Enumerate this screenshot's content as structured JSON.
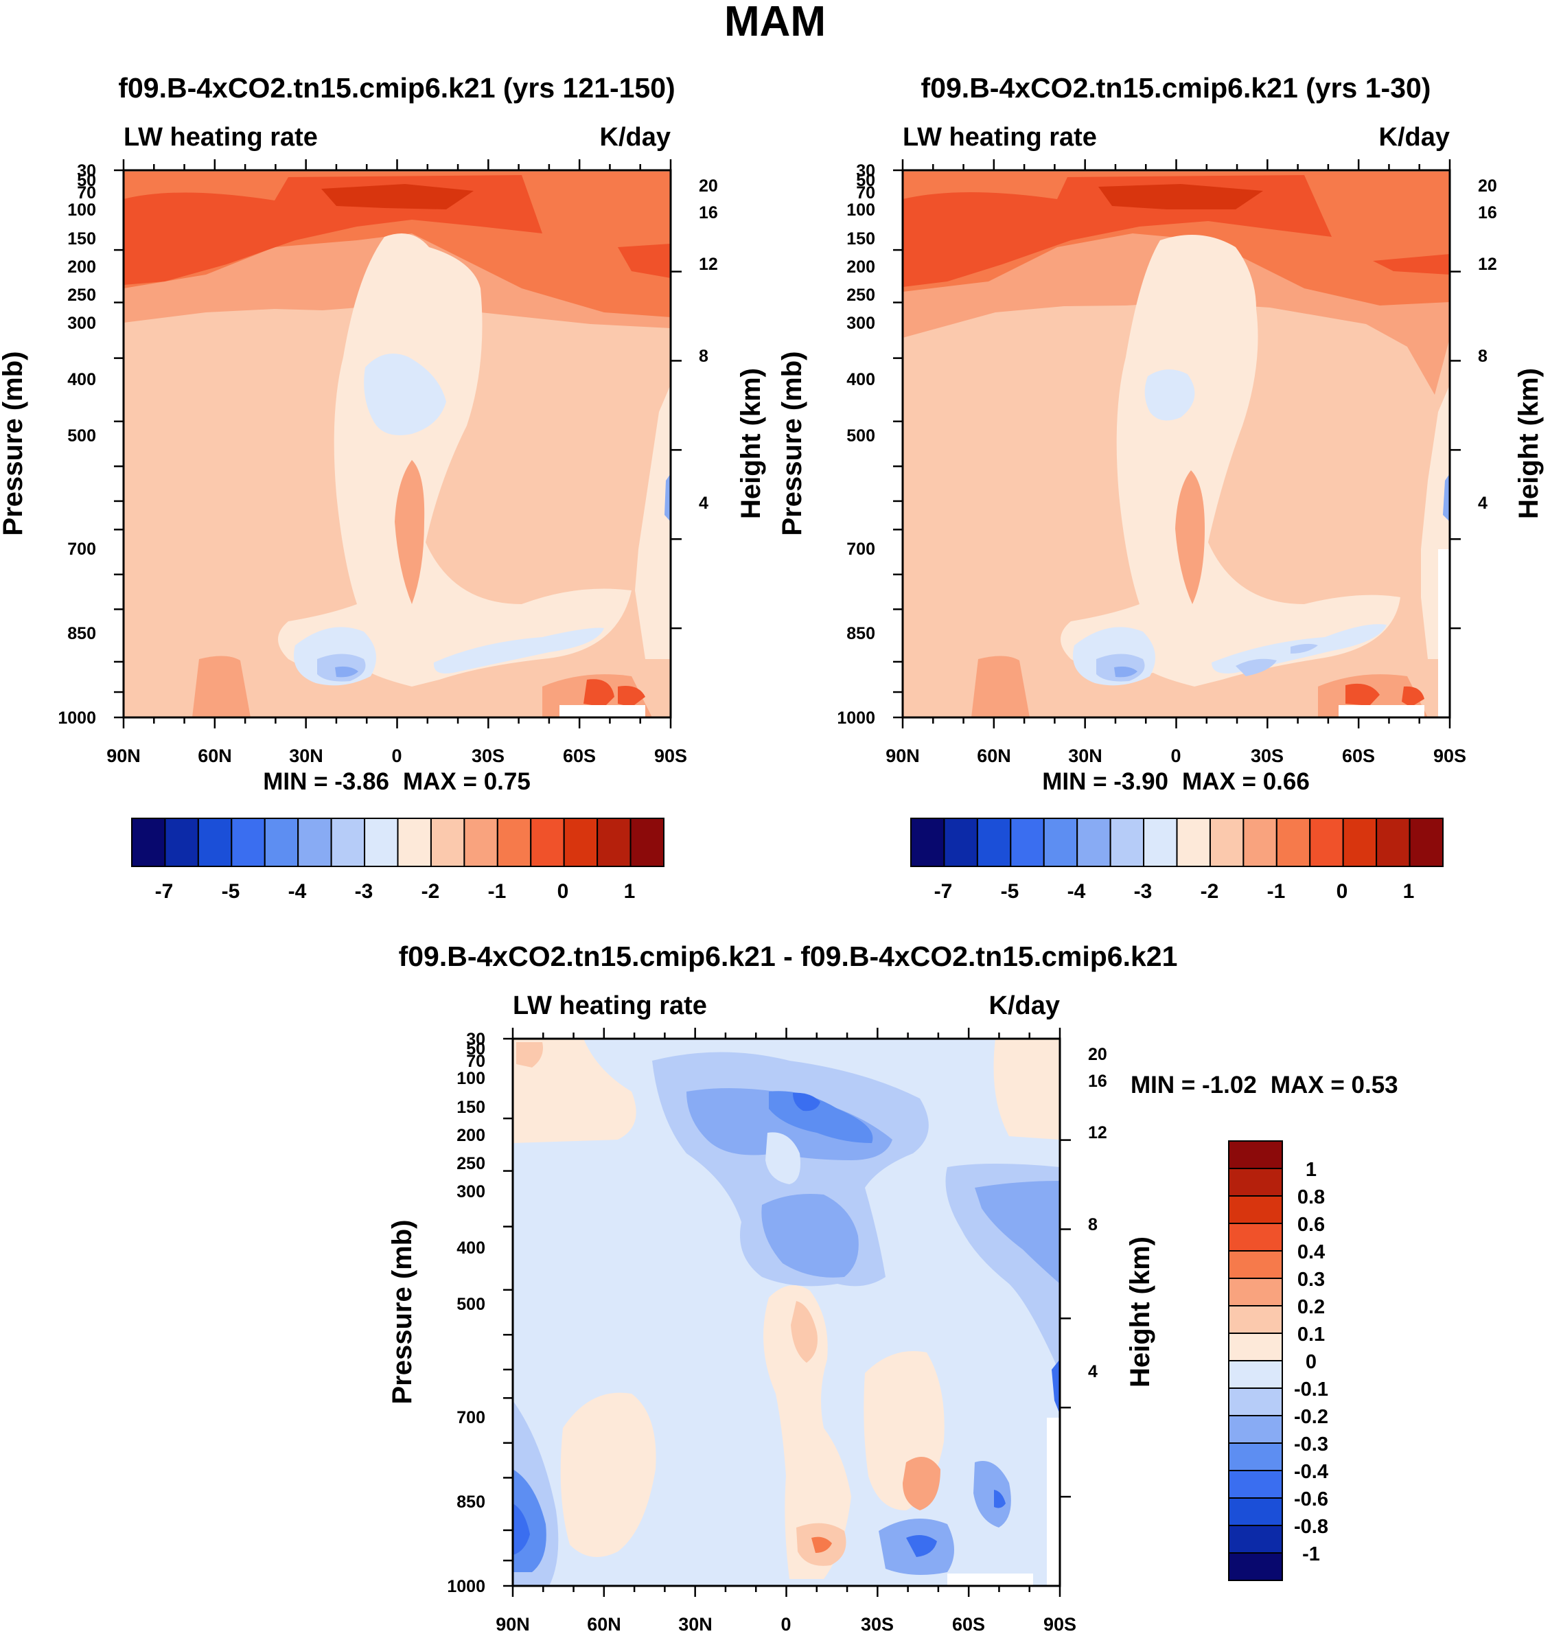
{
  "figure_title": "MAM",
  "chart_data": [
    {
      "id": "top-left",
      "type": "heatmap",
      "title": "f09.B-4xCO2.tn15.cmip6.k21 (yrs 121-150)",
      "left_label": "LW heating rate",
      "right_label": "K/day",
      "ylabel": "Pressure (mb)",
      "y2label": "Height (km)",
      "x_ticks": [
        "90N",
        "60N",
        "30N",
        "0",
        "30S",
        "60S",
        "90S"
      ],
      "pressure_ticks": [
        "30",
        "50",
        "70",
        "100",
        "150",
        "200",
        "250",
        "300",
        "400",
        "500",
        "700",
        "850",
        "1000"
      ],
      "height_ticks": [
        "4",
        "8",
        "12",
        "16",
        "20"
      ],
      "min_label": "MIN = ",
      "min_value": "-3.86",
      "max_label": "MAX = ",
      "max_value": "0.75",
      "colorbar_labels": [
        "-7",
        "-5",
        "-4",
        "-3",
        "-2",
        "-1",
        "0",
        "1"
      ]
    },
    {
      "id": "top-right",
      "type": "heatmap",
      "title": "f09.B-4xCO2.tn15.cmip6.k21 (yrs 1-30)",
      "left_label": "LW heating rate",
      "right_label": "K/day",
      "ylabel": "Pressure (mb)",
      "y2label": "Height (km)",
      "x_ticks": [
        "90N",
        "60N",
        "30N",
        "0",
        "30S",
        "60S",
        "90S"
      ],
      "pressure_ticks": [
        "30",
        "50",
        "70",
        "100",
        "150",
        "200",
        "250",
        "300",
        "400",
        "500",
        "700",
        "850",
        "1000"
      ],
      "height_ticks": [
        "4",
        "8",
        "12",
        "16",
        "20"
      ],
      "min_label": "MIN = ",
      "min_value": "-3.90",
      "max_label": "MAX = ",
      "max_value": "0.66",
      "colorbar_labels": [
        "-7",
        "-5",
        "-4",
        "-3",
        "-2",
        "-1",
        "0",
        "1"
      ]
    },
    {
      "id": "bottom",
      "type": "heatmap",
      "title": "f09.B-4xCO2.tn15.cmip6.k21 - f09.B-4xCO2.tn15.cmip6.k21",
      "left_label": "LW heating rate",
      "right_label": "K/day",
      "ylabel": "Pressure (mb)",
      "y2label": "Height (km)",
      "x_ticks": [
        "90N",
        "60N",
        "30N",
        "0",
        "30S",
        "60S",
        "90S"
      ],
      "pressure_ticks": [
        "30",
        "50",
        "70",
        "100",
        "150",
        "200",
        "250",
        "300",
        "400",
        "500",
        "700",
        "850",
        "1000"
      ],
      "height_ticks": [
        "4",
        "8",
        "12",
        "16",
        "20"
      ],
      "min_label": "MIN = ",
      "min_value": "-1.02",
      "max_label": "MAX = ",
      "max_value": "0.53",
      "colorbar_labels": [
        "1",
        "0.8",
        "0.6",
        "0.4",
        "0.3",
        "0.2",
        "0.1",
        "0",
        "-0.1",
        "-0.2",
        "-0.3",
        "-0.4",
        "-0.6",
        "-0.8",
        "-1"
      ]
    }
  ],
  "colors": {
    "palette": [
      "#08086e",
      "#0c2aa8",
      "#1b4fd8",
      "#3a6ef0",
      "#5d8ef2",
      "#88abf4",
      "#b6ccf8",
      "#dbe8fb",
      "#fde9d9",
      "#fbc9ad",
      "#f9a37e",
      "#f67a4b",
      "#f0522a",
      "#d8350e",
      "#b5200c",
      "#8c0a0a"
    ],
    "top_background": "#fbc9ad",
    "bottom_background": "#dbe8fb"
  }
}
